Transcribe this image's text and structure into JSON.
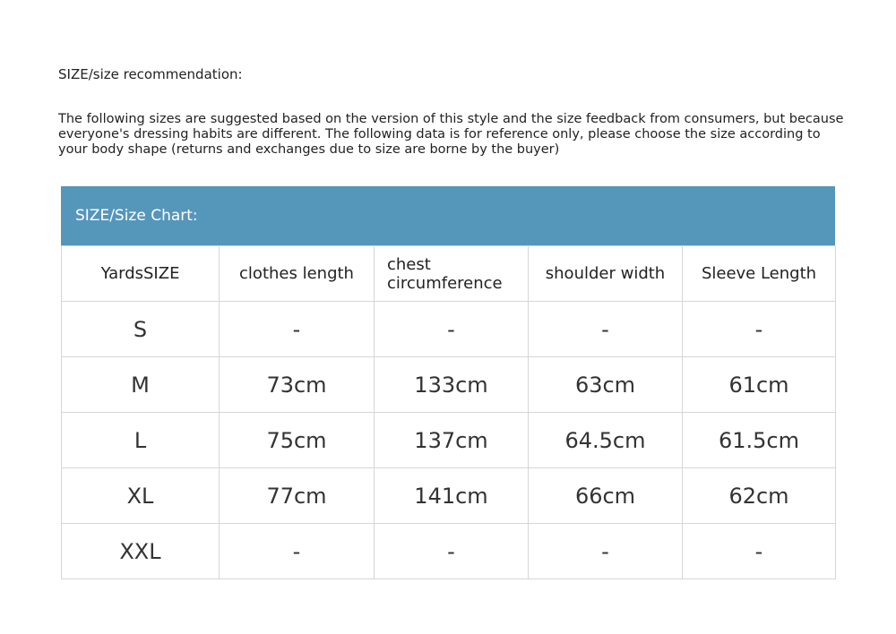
{
  "title": "SIZE/size recommendation:",
  "intro": "The following sizes are suggested based on the version of this style and the size feedback from consumers, but because everyone's dressing habits are different. The following data is for reference only, please choose the size according to your body shape (returns and exchanges due to size are borne by the buyer)",
  "chart": {
    "band_title": "SIZE/Size Chart:",
    "header_color": "#5596bb",
    "columns": [
      "YardsSIZE",
      "clothes length",
      "chest circumference",
      "shoulder width",
      "Sleeve Length"
    ],
    "rows": [
      [
        "S",
        "-",
        "-",
        "-",
        "-"
      ],
      [
        "M",
        "73cm",
        "133cm",
        "63cm",
        "61cm"
      ],
      [
        "L",
        "75cm",
        "137cm",
        "64.5cm",
        "61.5cm"
      ],
      [
        "XL",
        "77cm",
        "141cm",
        "66cm",
        "62cm"
      ],
      [
        "XXL",
        "-",
        "-",
        "-",
        "-"
      ]
    ]
  }
}
